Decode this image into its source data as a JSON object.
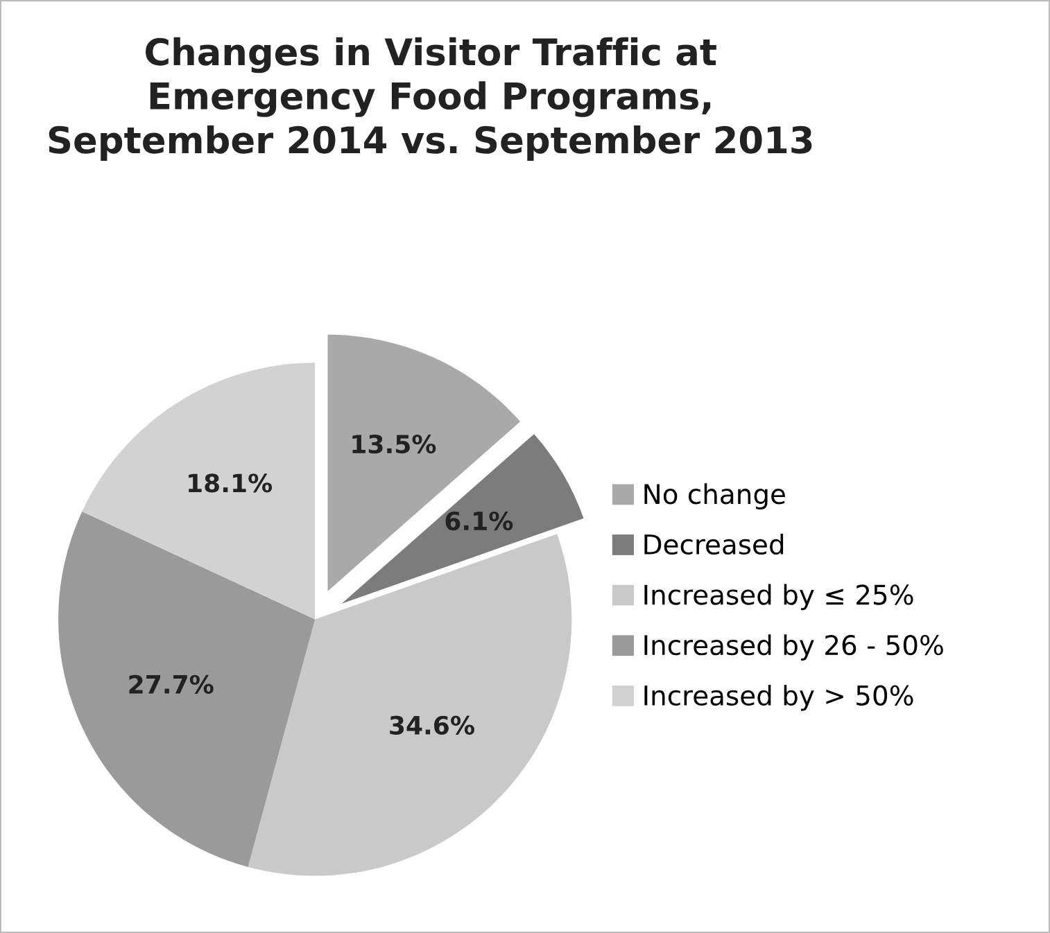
{
  "chart_data": {
    "type": "pie",
    "title": "Changes in Visitor Traffic at\nEmergency Food Programs,\nSeptember 2014 vs. September 2013",
    "categories": [
      "No change",
      "Decreased",
      "Increased by ≤ 25%",
      "Increased by 26 - 50%",
      "Increased by > 50%"
    ],
    "values": [
      13.5,
      6.1,
      34.6,
      27.7,
      18.1
    ],
    "value_labels": [
      "13.5%",
      "6.1%",
      "34.6%",
      "27.7%",
      "18.1%"
    ],
    "colors": [
      "#a9a9a9",
      "#7c7c7c",
      "#c9c9c9",
      "#9a9a9a",
      "#d2d2d2"
    ],
    "legend": "right"
  }
}
